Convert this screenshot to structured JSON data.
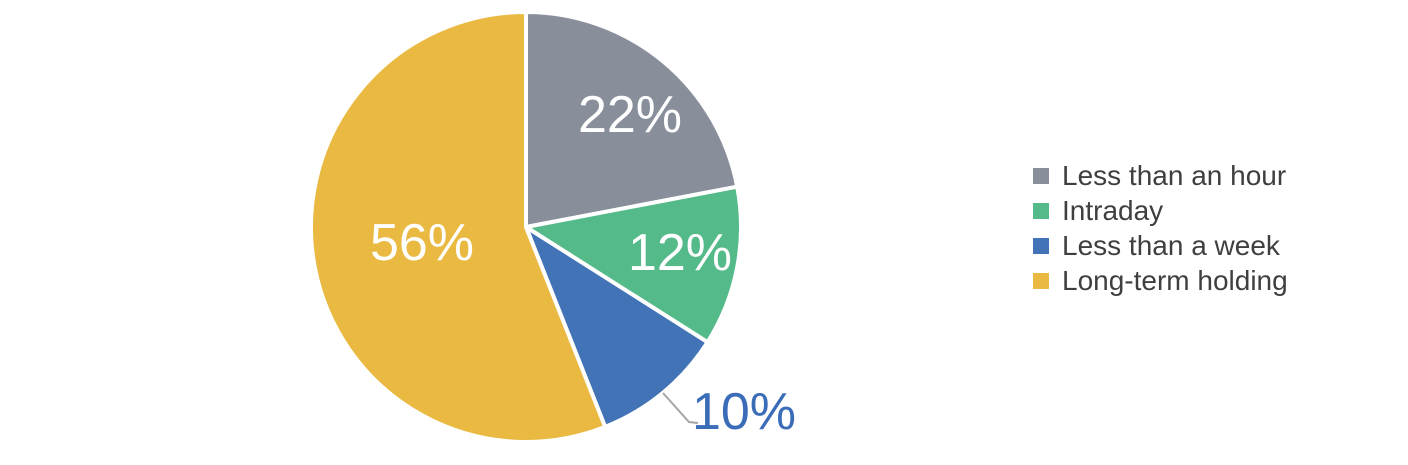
{
  "chart_data": {
    "type": "pie",
    "title": "",
    "categories": [
      "Less than an hour",
      "Intraday",
      "Less than a week",
      "Long-term holding"
    ],
    "values": [
      22,
      12,
      10,
      56
    ],
    "data_labels": [
      "22%",
      "12%",
      "10%",
      "56%"
    ],
    "colors": [
      "#888F9B",
      "#55BA8A",
      "#4273B7",
      "#E9B941"
    ],
    "legend_position": "right",
    "grid": false,
    "inside_label_color": "#FFFFFF",
    "outside_label_color": "#3A6CB7",
    "leader_line_color": "#A6A6A6",
    "legend_text_color": "#3F3F3F",
    "background_color": "#FFFFFF"
  },
  "legend": {
    "items": [
      {
        "label": "Less than an hour",
        "color": "#888F9B"
      },
      {
        "label": "Intraday",
        "color": "#55BA8A"
      },
      {
        "label": "Less than a week",
        "color": "#4273B7"
      },
      {
        "label": "Long-term holding",
        "color": "#E9B941"
      }
    ]
  }
}
